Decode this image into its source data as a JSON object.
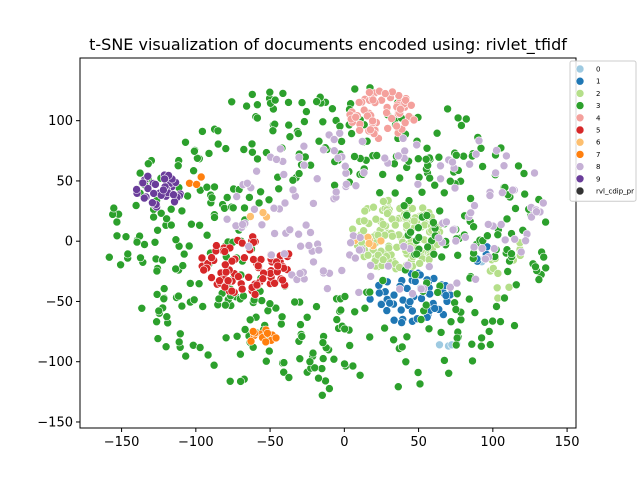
{
  "chart_data": {
    "type": "scatter",
    "title": "t-SNE visualization of documents encoded using: rivlet_tfidf",
    "xlabel": "",
    "ylabel": "",
    "xlim": [
      -178,
      156
    ],
    "ylim": [
      -155,
      152
    ],
    "x_ticks": [
      -150,
      -100,
      -50,
      0,
      50,
      100,
      150
    ],
    "y_ticks": [
      -150,
      -100,
      -50,
      0,
      50,
      100
    ],
    "grid": false,
    "legend": {
      "placement": "top-right",
      "entries": [
        "0",
        "1",
        "2",
        "3",
        "4",
        "5",
        "6",
        "7",
        "8",
        "9",
        "rvl_cdip_pr"
      ]
    },
    "series": [
      {
        "name": "0",
        "color": "#9ecae1",
        "clusters": [
          {
            "cx": 70,
            "cy": -85,
            "rx": 6,
            "ry": 5,
            "n": 4
          },
          {
            "cx": 95,
            "cy": -15,
            "rx": 4,
            "ry": 4,
            "n": 2
          }
        ]
      },
      {
        "name": "1",
        "color": "#1f77b4",
        "clusters": [
          {
            "cx": 45,
            "cy": -48,
            "rx": 28,
            "ry": 22,
            "n": 55
          },
          {
            "cx": 92,
            "cy": -10,
            "rx": 8,
            "ry": 8,
            "n": 4
          }
        ]
      },
      {
        "name": "2",
        "color": "#b5df8a",
        "clusters": [
          {
            "cx": 35,
            "cy": 5,
            "rx": 30,
            "ry": 30,
            "n": 150
          },
          {
            "cx": 110,
            "cy": -25,
            "rx": 15,
            "ry": 30,
            "n": 12
          }
        ]
      },
      {
        "name": "3",
        "color": "#2ca02c",
        "clusters": [
          {
            "cx": -10,
            "cy": 0,
            "rx": 150,
            "ry": 130,
            "n": 480,
            "ring": true
          }
        ]
      },
      {
        "name": "4",
        "color": "#f4a09c",
        "clusters": [
          {
            "cx": 25,
            "cy": 105,
            "rx": 24,
            "ry": 20,
            "n": 60
          }
        ]
      },
      {
        "name": "5",
        "color": "#d62728",
        "clusters": [
          {
            "cx": -65,
            "cy": -20,
            "rx": 33,
            "ry": 25,
            "n": 85
          }
        ]
      },
      {
        "name": "6",
        "color": "#fdbf6f",
        "clusters": [
          {
            "cx": 15,
            "cy": 5,
            "rx": 12,
            "ry": 10,
            "n": 6
          },
          {
            "cx": -55,
            "cy": 20,
            "rx": 10,
            "ry": 8,
            "n": 3
          }
        ]
      },
      {
        "name": "7",
        "color": "#ff7f0e",
        "clusters": [
          {
            "cx": -55,
            "cy": -80,
            "rx": 10,
            "ry": 7,
            "n": 12
          },
          {
            "cx": -100,
            "cy": 48,
            "rx": 5,
            "ry": 8,
            "n": 3
          }
        ]
      },
      {
        "name": "8",
        "color": "#c5b0d5",
        "clusters": [
          {
            "cx": 30,
            "cy": 25,
            "rx": 110,
            "ry": 70,
            "n": 150,
            "ring": true
          }
        ]
      },
      {
        "name": "9",
        "color": "#6a3d9a",
        "clusters": [
          {
            "cx": -125,
            "cy": 42,
            "rx": 15,
            "ry": 14,
            "n": 35
          }
        ]
      },
      {
        "name": "rvl_cdip_pr",
        "color": "#333333",
        "clusters": []
      }
    ]
  }
}
